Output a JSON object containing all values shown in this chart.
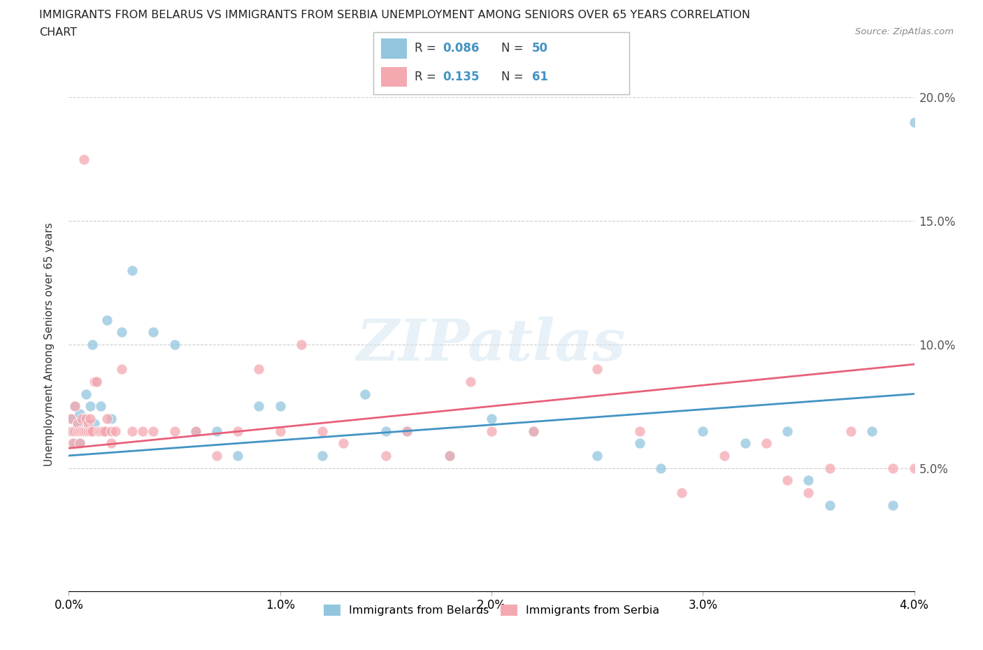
{
  "title_line1": "IMMIGRANTS FROM BELARUS VS IMMIGRANTS FROM SERBIA UNEMPLOYMENT AMONG SENIORS OVER 65 YEARS CORRELATION",
  "title_line2": "CHART",
  "source": "Source: ZipAtlas.com",
  "ylabel": "Unemployment Among Seniors over 65 years",
  "xlim": [
    0.0,
    0.04
  ],
  "ylim": [
    0.0,
    0.2
  ],
  "xticks": [
    0.0,
    0.01,
    0.02,
    0.03,
    0.04
  ],
  "yticks": [
    0.0,
    0.05,
    0.1,
    0.15,
    0.2
  ],
  "xticklabels": [
    "0.0%",
    "1.0%",
    "2.0%",
    "3.0%",
    "4.0%"
  ],
  "yticklabels_right": [
    "",
    "5.0%",
    "10.0%",
    "15.0%",
    "20.0%"
  ],
  "color_belarus": "#92c5de",
  "color_serbia": "#f4a8b0",
  "color_line_belarus": "#4393c3",
  "color_line_serbia": "#e8607a",
  "R_belarus": "0.086",
  "N_belarus": "50",
  "R_serbia": "0.135",
  "N_serbia": "61",
  "watermark": "ZIPatlas",
  "legend_belarus": "Immigrants from Belarus",
  "legend_serbia": "Immigrants from Serbia",
  "belarus_x": [
    0.0001,
    0.0002,
    0.0003,
    0.0003,
    0.0004,
    0.0004,
    0.0005,
    0.0005,
    0.0006,
    0.0007,
    0.0007,
    0.0008,
    0.0009,
    0.001,
    0.001,
    0.0011,
    0.0012,
    0.0013,
    0.0014,
    0.0015,
    0.0016,
    0.0018,
    0.002,
    0.0025,
    0.003,
    0.004,
    0.005,
    0.006,
    0.007,
    0.008,
    0.009,
    0.01,
    0.012,
    0.014,
    0.015,
    0.016,
    0.018,
    0.02,
    0.022,
    0.025,
    0.027,
    0.028,
    0.03,
    0.032,
    0.034,
    0.035,
    0.036,
    0.038,
    0.039,
    0.04
  ],
  "belarus_y": [
    0.065,
    0.07,
    0.06,
    0.075,
    0.065,
    0.068,
    0.072,
    0.06,
    0.068,
    0.07,
    0.065,
    0.08,
    0.065,
    0.075,
    0.065,
    0.1,
    0.068,
    0.085,
    0.065,
    0.075,
    0.065,
    0.11,
    0.07,
    0.105,
    0.13,
    0.105,
    0.1,
    0.065,
    0.065,
    0.055,
    0.075,
    0.075,
    0.055,
    0.08,
    0.065,
    0.065,
    0.055,
    0.07,
    0.065,
    0.055,
    0.06,
    0.05,
    0.065,
    0.06,
    0.065,
    0.045,
    0.035,
    0.065,
    0.035,
    0.19
  ],
  "serbia_x": [
    0.0001,
    0.0001,
    0.0002,
    0.0002,
    0.0003,
    0.0003,
    0.0004,
    0.0004,
    0.0005,
    0.0005,
    0.0006,
    0.0006,
    0.0007,
    0.0007,
    0.0008,
    0.0008,
    0.0009,
    0.0009,
    0.001,
    0.001,
    0.0011,
    0.0012,
    0.0013,
    0.0014,
    0.0015,
    0.0016,
    0.0017,
    0.0018,
    0.002,
    0.002,
    0.0022,
    0.0025,
    0.003,
    0.0035,
    0.004,
    0.005,
    0.006,
    0.007,
    0.008,
    0.009,
    0.01,
    0.011,
    0.012,
    0.013,
    0.015,
    0.016,
    0.018,
    0.02,
    0.022,
    0.025,
    0.027,
    0.029,
    0.031,
    0.033,
    0.034,
    0.035,
    0.036,
    0.037,
    0.039,
    0.04,
    0.019
  ],
  "serbia_y": [
    0.065,
    0.07,
    0.065,
    0.06,
    0.065,
    0.075,
    0.065,
    0.068,
    0.065,
    0.06,
    0.065,
    0.07,
    0.065,
    0.175,
    0.065,
    0.07,
    0.065,
    0.068,
    0.065,
    0.07,
    0.065,
    0.085,
    0.085,
    0.065,
    0.065,
    0.065,
    0.065,
    0.07,
    0.065,
    0.06,
    0.065,
    0.09,
    0.065,
    0.065,
    0.065,
    0.065,
    0.065,
    0.055,
    0.065,
    0.09,
    0.065,
    0.1,
    0.065,
    0.06,
    0.055,
    0.065,
    0.055,
    0.065,
    0.065,
    0.09,
    0.065,
    0.04,
    0.055,
    0.06,
    0.045,
    0.04,
    0.05,
    0.065,
    0.05,
    0.05,
    0.085
  ]
}
